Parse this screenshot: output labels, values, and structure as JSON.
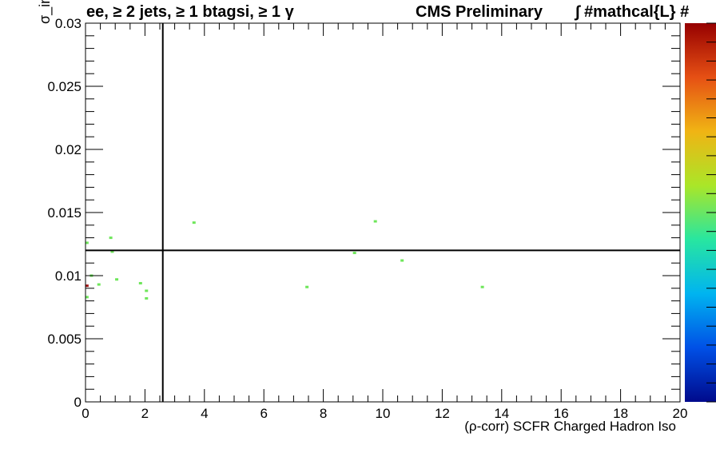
{
  "titles": {
    "selection": "ee, ≥ 2 jets, ≥ 1 btagsi, ≥ 1 γ",
    "experiment": "CMS Preliminary",
    "lumi": "∫ #mathcal{L}  #"
  },
  "chart_data": {
    "type": "heatmap",
    "xlabel": "(ρ-corr) SCFR Charged Hadron Iso",
    "ylabel": "σ_iηiη",
    "xlim": [
      0,
      20
    ],
    "ylim": [
      0,
      0.03
    ],
    "x_ticks": [
      0,
      2,
      4,
      6,
      8,
      10,
      12,
      14,
      16,
      18,
      20
    ],
    "y_ticks": [
      0,
      0.005,
      0.01,
      0.015,
      0.02,
      0.025,
      0.03
    ],
    "x_tick_labels": [
      "0",
      "2",
      "4",
      "6",
      "8",
      "10",
      "12",
      "14",
      "16",
      "18",
      "20"
    ],
    "y_tick_labels": [
      "0",
      "0.005",
      "0.01",
      "0.015",
      "0.02",
      "0.025",
      "0.03"
    ],
    "cut_lines": {
      "x": 2.6,
      "y": 0.012
    },
    "colormap": [
      "#000a8c",
      "#0050e6",
      "#00b4f0",
      "#28e6a0",
      "#aae628",
      "#f0b414",
      "#e65014",
      "#960000"
    ],
    "cells": [
      {
        "x": 0.05,
        "y": 0.0126,
        "level": 0.5
      },
      {
        "x": 0.05,
        "y": 0.0092,
        "level": 0.95
      },
      {
        "x": 0.05,
        "y": 0.0083,
        "level": 0.5
      },
      {
        "x": 0.2,
        "y": 0.01,
        "level": 0.5
      },
      {
        "x": 0.45,
        "y": 0.0093,
        "level": 0.5
      },
      {
        "x": 0.85,
        "y": 0.013,
        "level": 0.5
      },
      {
        "x": 0.9,
        "y": 0.0119,
        "level": 0.5
      },
      {
        "x": 1.05,
        "y": 0.0097,
        "level": 0.5
      },
      {
        "x": 1.85,
        "y": 0.0094,
        "level": 0.5
      },
      {
        "x": 2.05,
        "y": 0.0088,
        "level": 0.5
      },
      {
        "x": 2.05,
        "y": 0.0082,
        "level": 0.5
      },
      {
        "x": 3.65,
        "y": 0.0142,
        "level": 0.5
      },
      {
        "x": 7.45,
        "y": 0.0091,
        "level": 0.5
      },
      {
        "x": 9.05,
        "y": 0.0118,
        "level": 0.5
      },
      {
        "x": 9.75,
        "y": 0.0143,
        "level": 0.5
      },
      {
        "x": 10.65,
        "y": 0.0112,
        "level": 0.5
      },
      {
        "x": 13.35,
        "y": 0.0091,
        "level": 0.5
      }
    ]
  }
}
